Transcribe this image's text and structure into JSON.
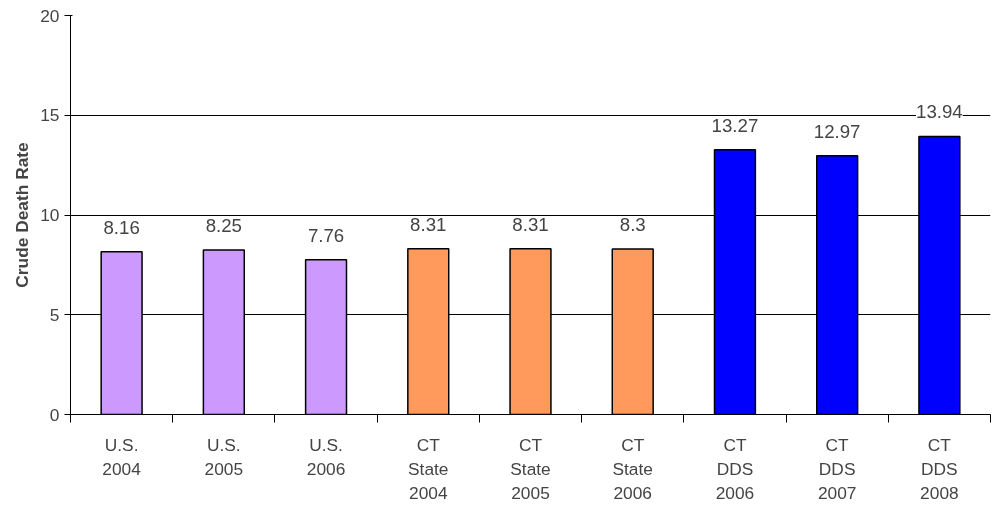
{
  "chart_data": {
    "type": "bar",
    "ylabel": "Crude Death Rate",
    "categories": [
      "U.S.\n2004",
      "U.S.\n2005",
      "U.S.\n2006",
      "CT\nState\n2004",
      "CT\nState\n2005",
      "CT\nState\n2006",
      "CT\nDDS\n2006",
      "CT\nDDS\n2007",
      "CT\nDDS\n2008"
    ],
    "values": [
      8.16,
      8.25,
      7.76,
      8.31,
      8.31,
      8.3,
      13.27,
      12.97,
      13.94
    ],
    "colors": [
      "#cc99ff",
      "#cc99ff",
      "#cc99ff",
      "#ff9a5c",
      "#ff9a5c",
      "#ff9a5c",
      "#0000ff",
      "#0000ff",
      "#0000ff"
    ],
    "ylim": [
      0,
      20
    ],
    "yticks": [
      0,
      5,
      10,
      15,
      20
    ],
    "grid": "y",
    "data_labels": true
  }
}
